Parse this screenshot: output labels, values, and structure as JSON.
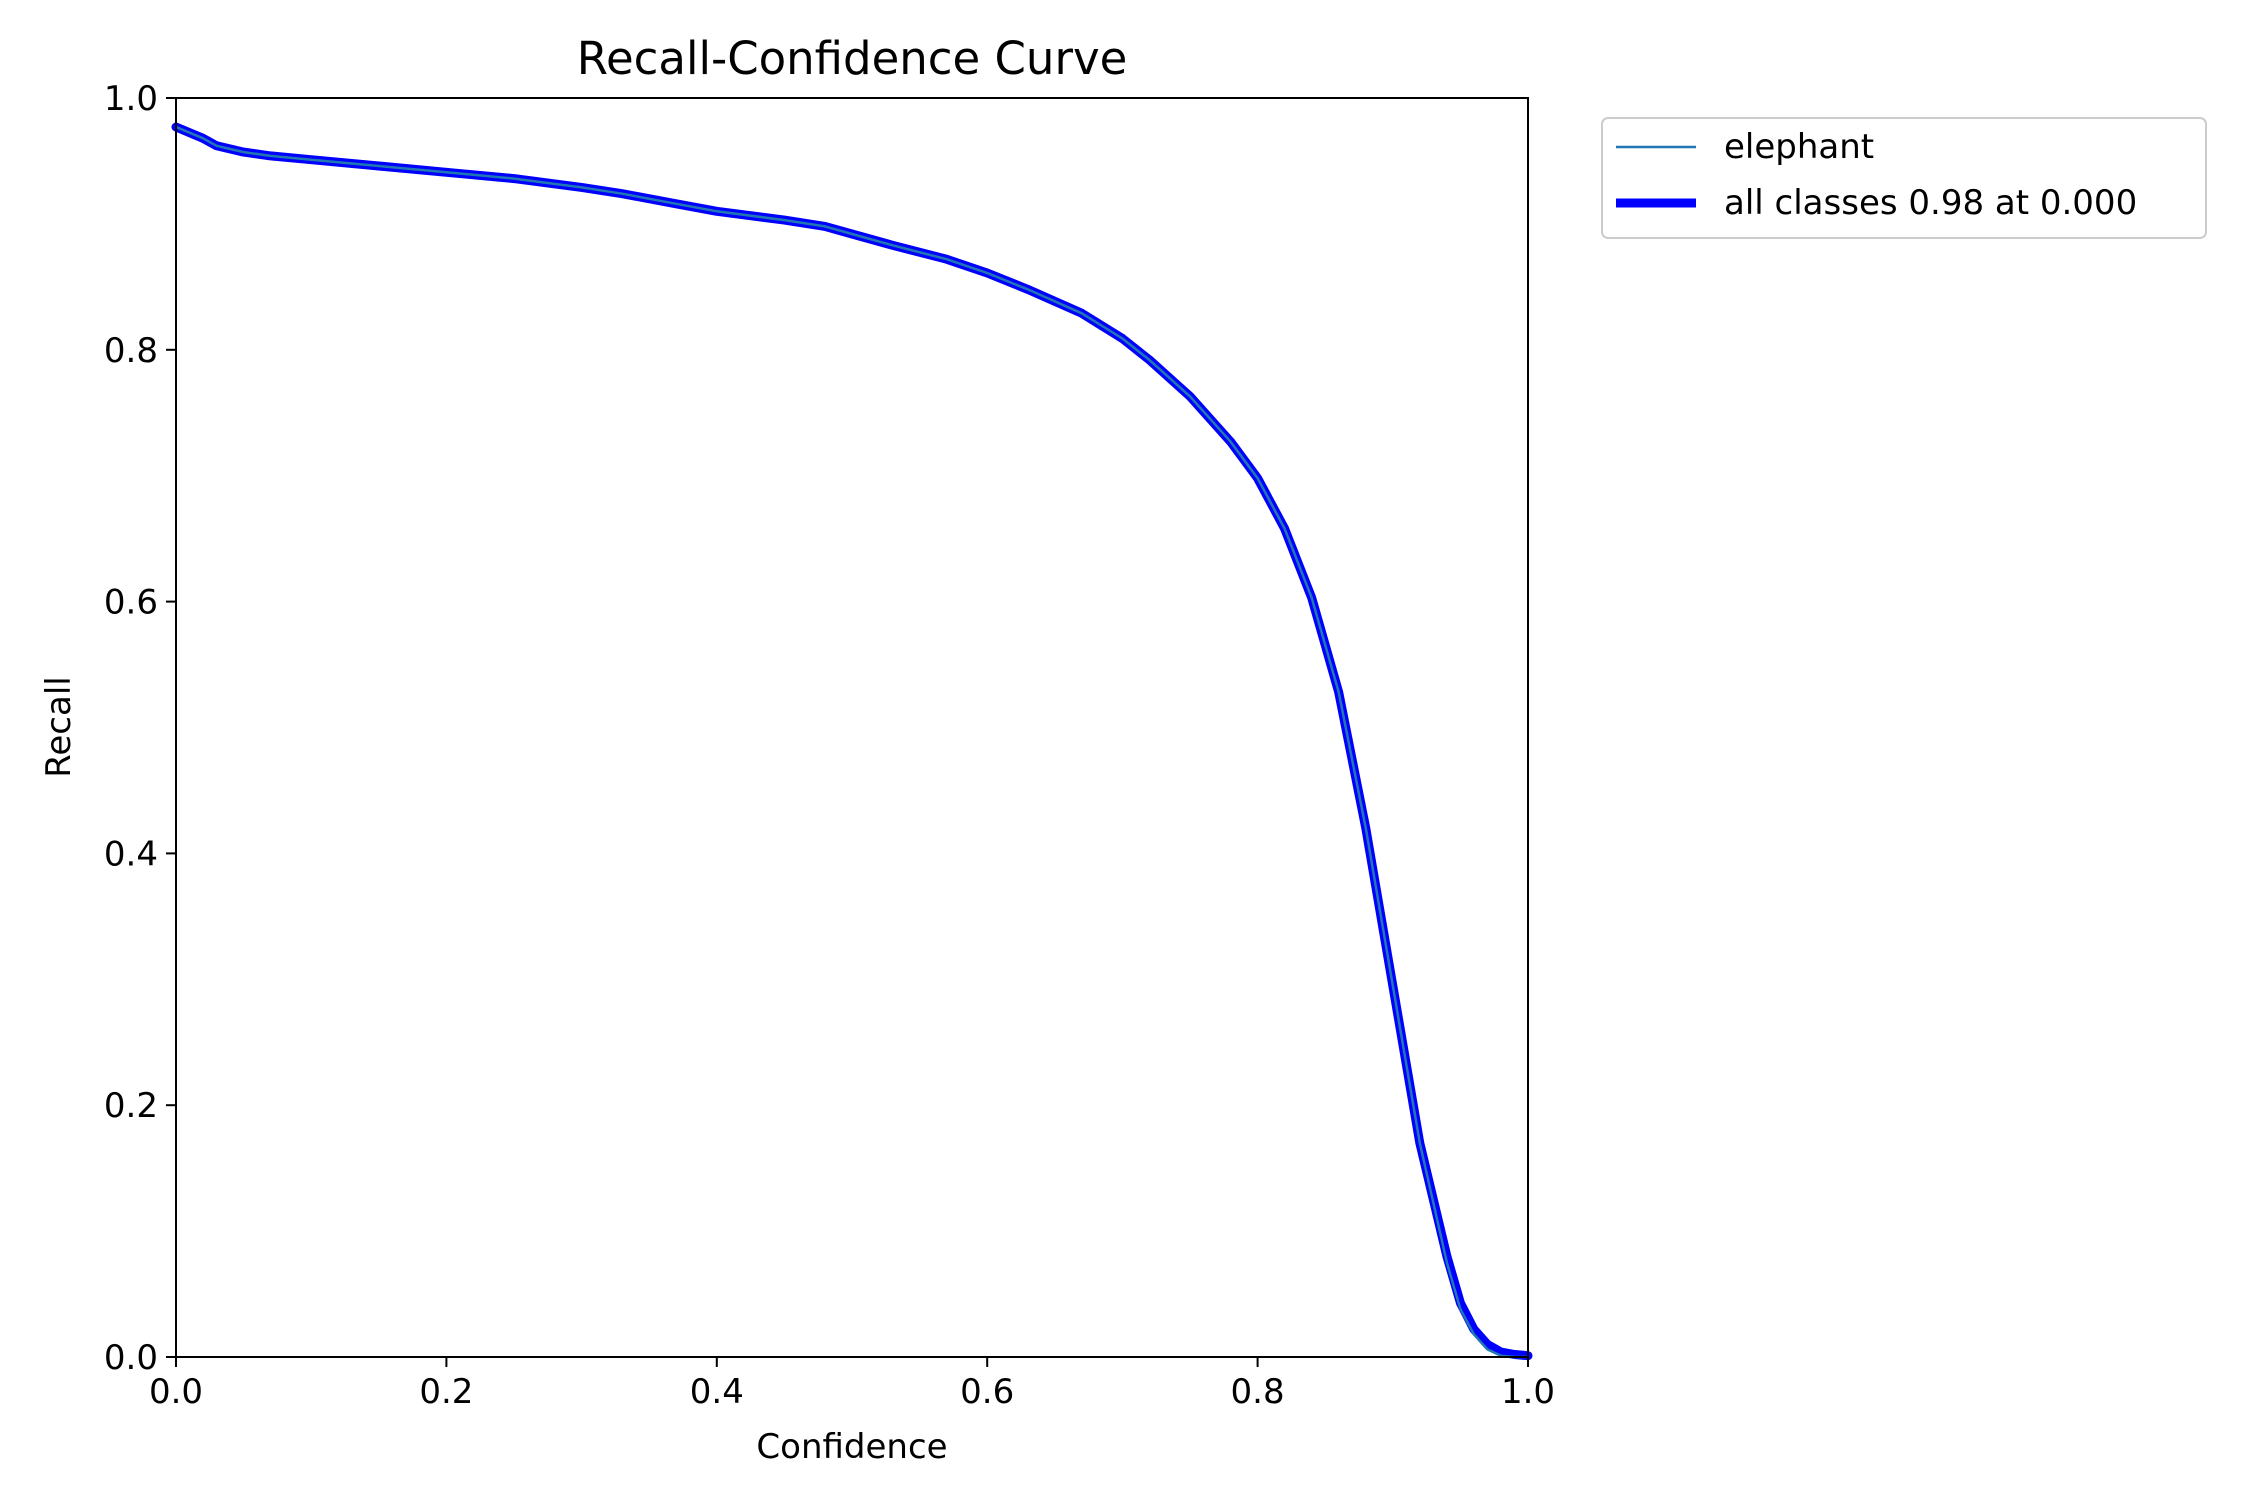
{
  "chart_data": {
    "type": "line",
    "title": "Recall-Confidence Curve",
    "xlabel": "Confidence",
    "ylabel": "Recall",
    "xlim": [
      0,
      1
    ],
    "ylim": [
      0,
      1
    ],
    "grid": false,
    "legend_position": "outside top-right",
    "xticks": [
      "0.0",
      "0.2",
      "0.4",
      "0.6",
      "0.8",
      "1.0"
    ],
    "yticks": [
      "0.0",
      "0.2",
      "0.4",
      "0.6",
      "0.8",
      "1.0"
    ],
    "x": [
      0.0,
      0.02,
      0.03,
      0.05,
      0.07,
      0.1,
      0.15,
      0.2,
      0.25,
      0.3,
      0.33,
      0.37,
      0.4,
      0.45,
      0.48,
      0.5,
      0.53,
      0.57,
      0.6,
      0.63,
      0.67,
      0.7,
      0.72,
      0.75,
      0.78,
      0.8,
      0.82,
      0.84,
      0.86,
      0.88,
      0.9,
      0.92,
      0.94,
      0.95,
      0.96,
      0.97,
      0.98,
      0.99,
      1.0
    ],
    "series": [
      {
        "name": "elephant",
        "color": "#1f77b4",
        "values": [
          0.977,
          0.968,
          0.962,
          0.957,
          0.954,
          0.951,
          0.946,
          0.941,
          0.936,
          0.929,
          0.924,
          0.916,
          0.91,
          0.903,
          0.898,
          0.892,
          0.883,
          0.872,
          0.861,
          0.848,
          0.829,
          0.809,
          0.792,
          0.763,
          0.727,
          0.698,
          0.658,
          0.603,
          0.528,
          0.42,
          0.295,
          0.17,
          0.075,
          0.038,
          0.018,
          0.006,
          0.001,
          0.0,
          0.0
        ]
      },
      {
        "name": "all classes 0.98 at 0.000",
        "color": "#0000ff",
        "values": [
          0.977,
          0.968,
          0.962,
          0.957,
          0.954,
          0.951,
          0.946,
          0.941,
          0.936,
          0.929,
          0.924,
          0.916,
          0.91,
          0.903,
          0.898,
          0.892,
          0.883,
          0.872,
          0.861,
          0.848,
          0.829,
          0.809,
          0.792,
          0.763,
          0.727,
          0.698,
          0.658,
          0.603,
          0.528,
          0.42,
          0.295,
          0.17,
          0.08,
          0.043,
          0.022,
          0.01,
          0.004,
          0.002,
          0.001
        ]
      }
    ]
  }
}
